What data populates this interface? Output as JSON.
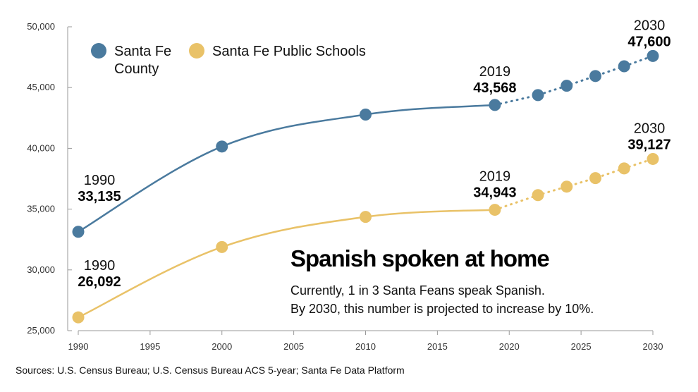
{
  "colors": {
    "county": "#4a7a9e",
    "schools": "#e9c268",
    "axis": "#999999"
  },
  "chart_data": {
    "type": "line",
    "title": "Spanish spoken at home",
    "subtitle_lines": [
      "Currently, 1 in 3 Santa Feans speak Spanish.",
      "By 2030, this number is projected to increase by 10%."
    ],
    "source": "Sources: U.S. Census Bureau; U.S. Census Bureau ACS 5-year; Santa Fe Data Platform",
    "xlim": [
      1990,
      2030
    ],
    "ylim": [
      25000,
      50000
    ],
    "x_ticks": [
      "1990",
      "1995",
      "2000",
      "2005",
      "2010",
      "2015",
      "2020",
      "2025",
      "2030"
    ],
    "y_ticks": [
      "25,000",
      "30,000",
      "35,000",
      "40,000",
      "45,000",
      "50,000"
    ],
    "legend": [
      "Santa Fe County",
      "Santa Fe Public Schools"
    ],
    "series": [
      {
        "name": "Santa Fe County",
        "actual": [
          [
            1990,
            33135
          ],
          [
            2000,
            40150
          ],
          [
            2010,
            42780
          ],
          [
            2019,
            43568
          ]
        ],
        "projected": [
          [
            2019,
            43568
          ],
          [
            2022,
            44380
          ],
          [
            2024,
            45150
          ],
          [
            2026,
            45950
          ],
          [
            2028,
            46750
          ],
          [
            2030,
            47600
          ]
        ],
        "annotations": [
          {
            "year": "1990",
            "value": "33,135"
          },
          {
            "year": "2019",
            "value": "43,568"
          },
          {
            "year": "2030",
            "value": "47,600"
          }
        ]
      },
      {
        "name": "Santa Fe Public Schools",
        "actual": [
          [
            1990,
            26092
          ],
          [
            2000,
            31880
          ],
          [
            2010,
            34360
          ],
          [
            2019,
            34943
          ]
        ],
        "projected": [
          [
            2019,
            34943
          ],
          [
            2022,
            36150
          ],
          [
            2024,
            36850
          ],
          [
            2026,
            37550
          ],
          [
            2028,
            38350
          ],
          [
            2030,
            39127
          ]
        ],
        "annotations": [
          {
            "year": "1990",
            "value": "26,092"
          },
          {
            "year": "2019",
            "value": "34,943"
          },
          {
            "year": "2030",
            "value": "39,127"
          }
        ]
      }
    ]
  }
}
